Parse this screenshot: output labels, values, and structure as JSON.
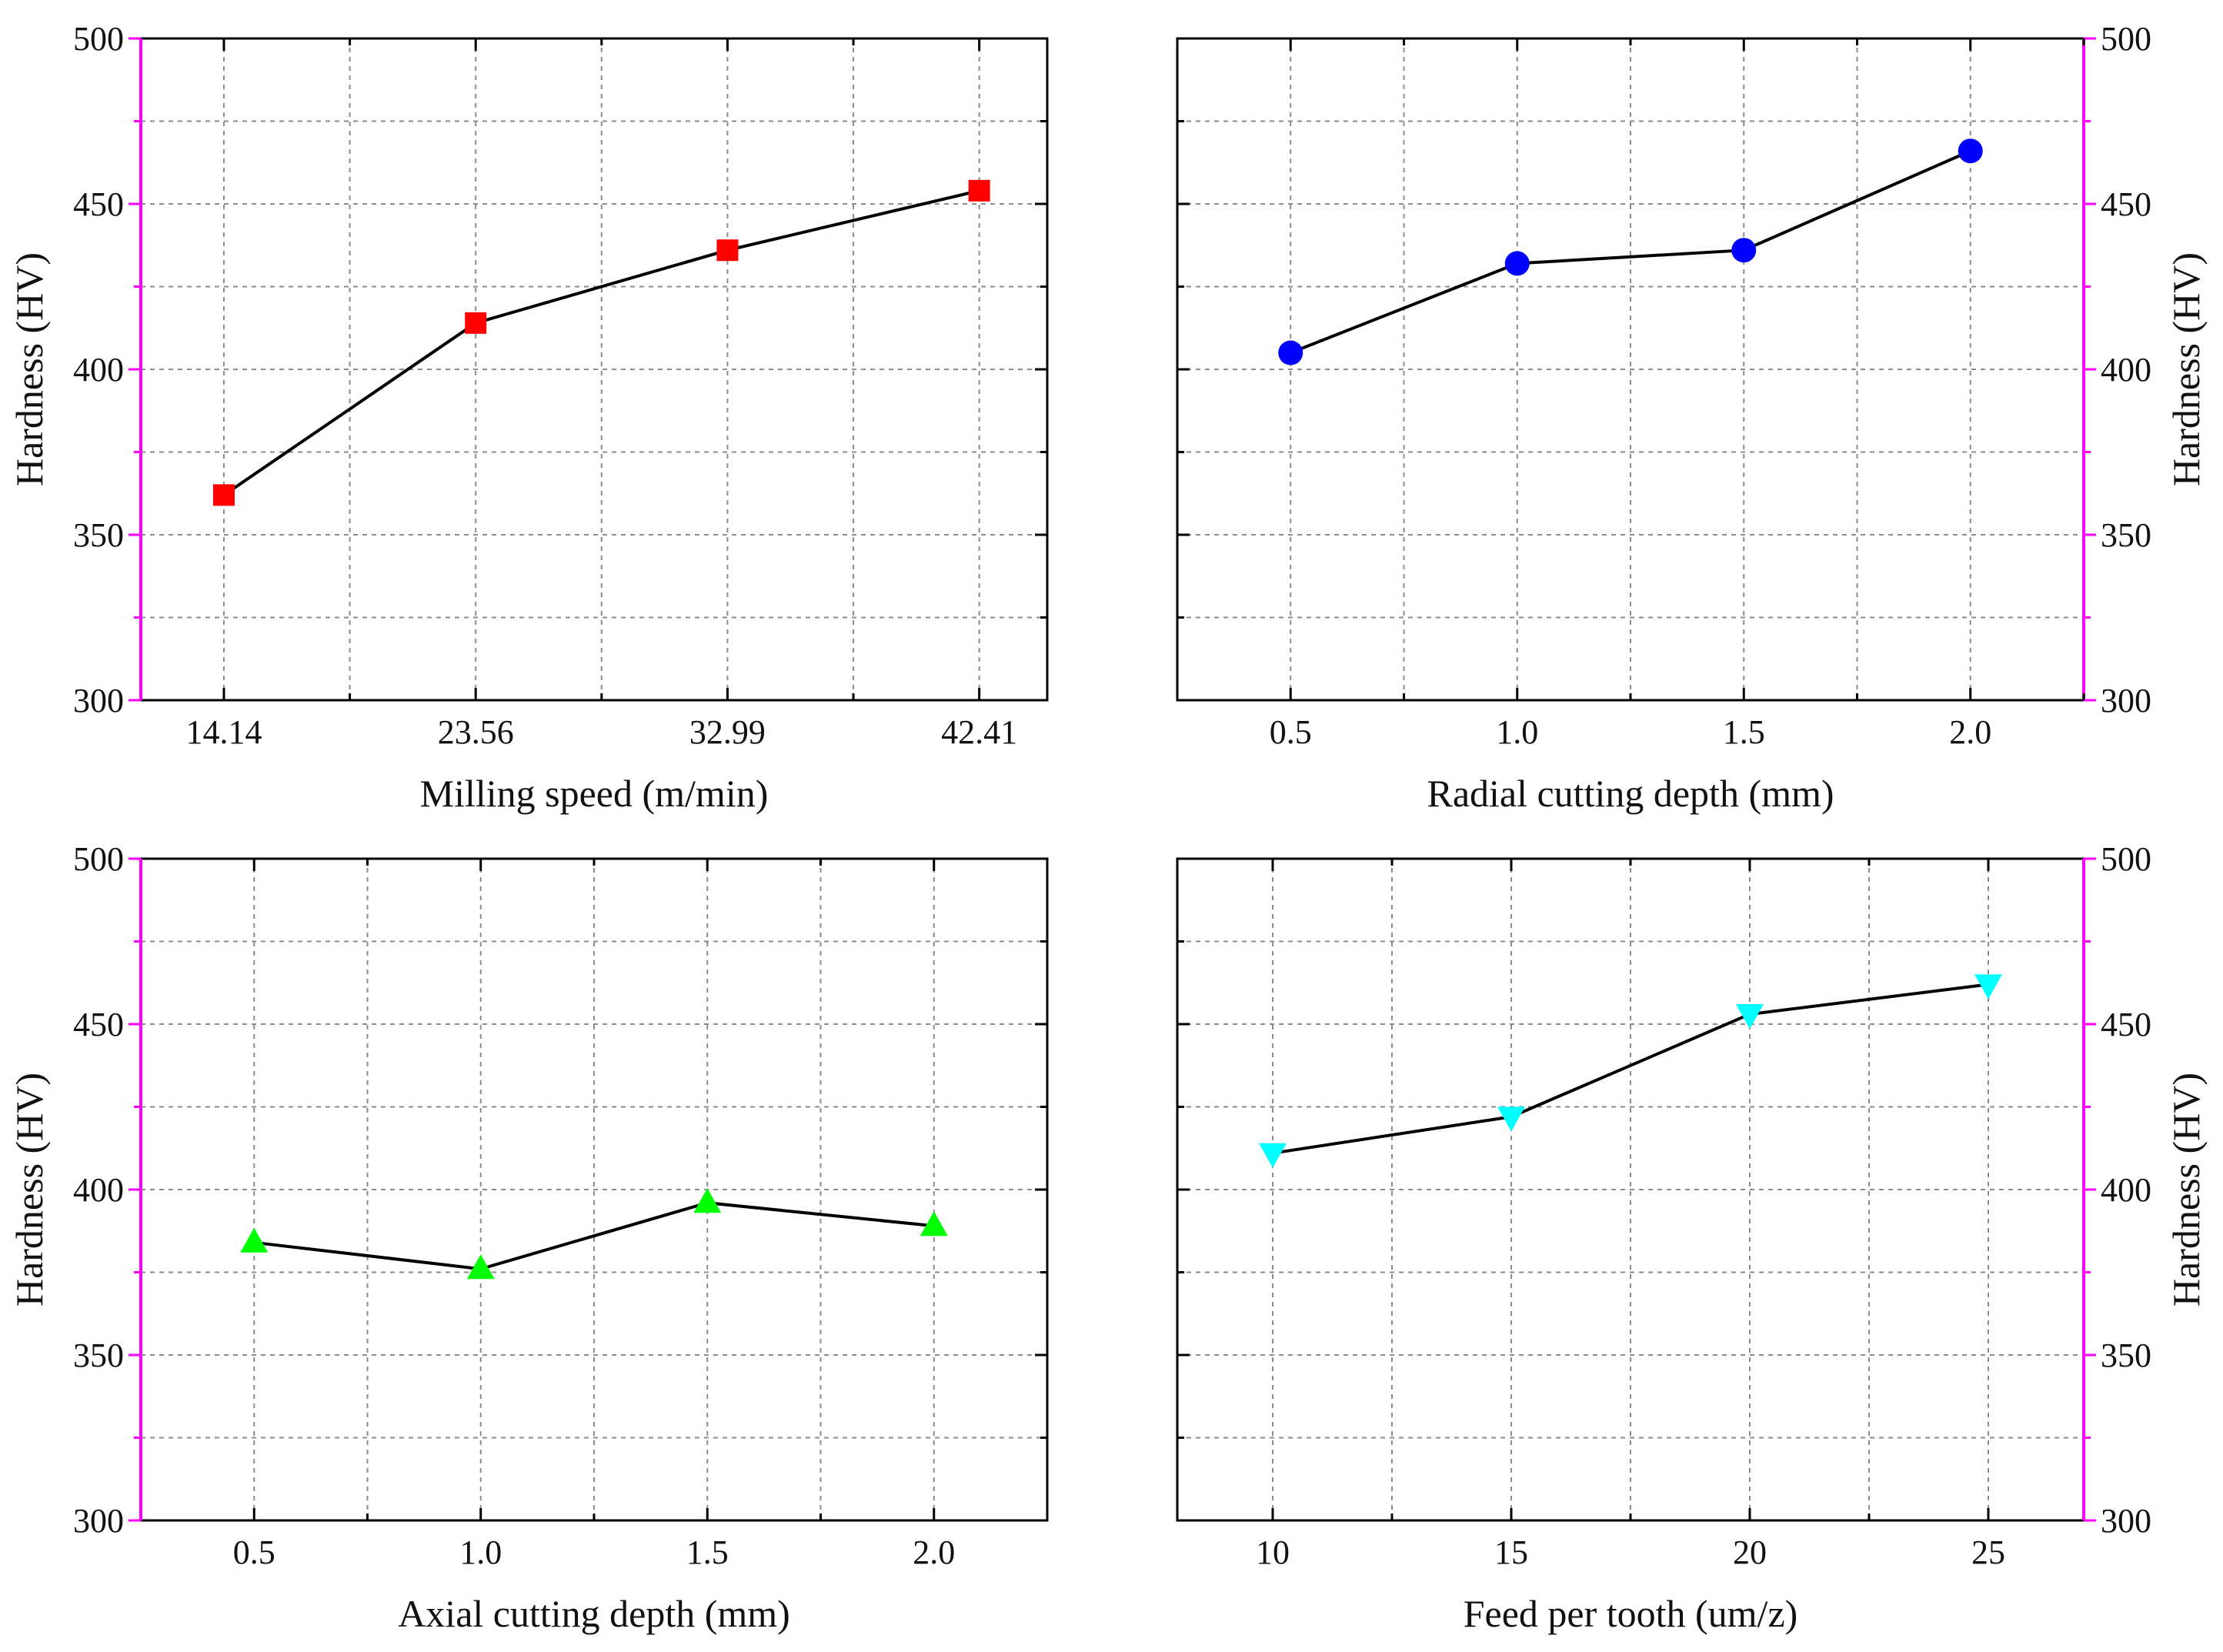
{
  "figure": {
    "y_axis_color": "#ff00ff",
    "line_color": "#000000",
    "grid_color": "#8c8c8c"
  },
  "chart_data": [
    {
      "type": "line",
      "name": "milling-speed",
      "xlabel": "Milling speed (m/min)",
      "ylabel": "Hardness (HV)",
      "y_axis_side": "left",
      "ylim": [
        300,
        500
      ],
      "yticks": [
        "300",
        "350",
        "400",
        "450",
        "500"
      ],
      "x_positions": [
        0,
        1,
        2,
        3
      ],
      "xlim": [
        -0.33,
        3.27
      ],
      "xticks": [
        "14.14",
        "23.56",
        "32.99",
        "42.41"
      ],
      "x": [
        "14.14",
        "23.56",
        "32.99",
        "42.41"
      ],
      "values": [
        362,
        414,
        436,
        454
      ],
      "marker": "square",
      "marker_color": "#ff0000"
    },
    {
      "type": "line",
      "name": "radial-cutting-depth",
      "xlabel": "Radial cutting depth (mm)",
      "ylabel": "Hardness (HV)",
      "y_axis_side": "right",
      "ylim": [
        300,
        500
      ],
      "yticks": [
        "300",
        "350",
        "400",
        "450",
        "500"
      ],
      "x_positions": [
        0.5,
        1.0,
        1.5,
        2.0
      ],
      "xlim": [
        0.25,
        2.25
      ],
      "xticks": [
        "0.5",
        "1.0",
        "1.5",
        "2.0"
      ],
      "x": [
        "0.5",
        "1.0",
        "1.5",
        "2.0"
      ],
      "values": [
        405,
        432,
        436,
        466
      ],
      "marker": "circle",
      "marker_color": "#0000ff"
    },
    {
      "type": "line",
      "name": "axial-cutting-depth",
      "xlabel": "Axial cutting depth (mm)",
      "ylabel": "Hardness (HV)",
      "y_axis_side": "left",
      "ylim": [
        300,
        500
      ],
      "yticks": [
        "300",
        "350",
        "400",
        "450",
        "500"
      ],
      "x_positions": [
        0.5,
        1.0,
        1.5,
        2.0
      ],
      "xlim": [
        0.25,
        2.25
      ],
      "xticks": [
        "0.5",
        "1.0",
        "1.5",
        "2.0"
      ],
      "x": [
        "0.5",
        "1.0",
        "1.5",
        "2.0"
      ],
      "values": [
        384,
        376,
        396,
        389
      ],
      "marker": "triangle-up",
      "marker_color": "#00ff00"
    },
    {
      "type": "line",
      "name": "feed-per-tooth",
      "xlabel": "Feed per tooth (um/z)",
      "ylabel": "Hardness (HV)",
      "y_axis_side": "right",
      "ylim": [
        300,
        500
      ],
      "yticks": [
        "300",
        "350",
        "400",
        "450",
        "500"
      ],
      "x_positions": [
        10,
        15,
        20,
        25
      ],
      "xlim": [
        8,
        27
      ],
      "xticks": [
        "10",
        "15",
        "20",
        "25"
      ],
      "x": [
        "10",
        "15",
        "20",
        "25"
      ],
      "values": [
        411,
        422,
        453,
        462
      ],
      "marker": "triangle-down",
      "marker_color": "#00ffff"
    }
  ]
}
